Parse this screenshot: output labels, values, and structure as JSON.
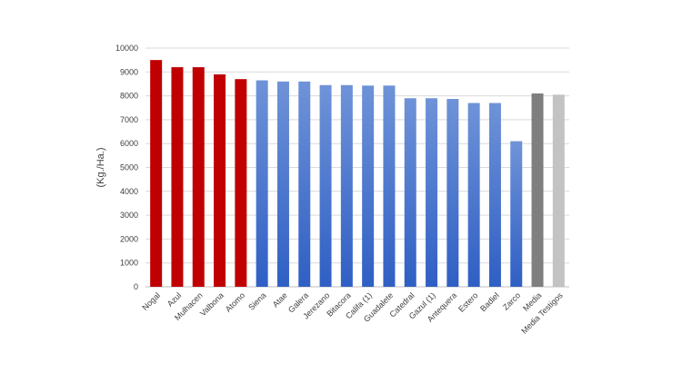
{
  "chart_data": {
    "type": "bar",
    "ylabel": "(Kg./Ha.)",
    "ylim": [
      0,
      10000
    ],
    "yticks": [
      0,
      1000,
      2000,
      3000,
      4000,
      5000,
      6000,
      7000,
      8000,
      9000,
      10000
    ],
    "grid": true,
    "categories": [
      "Nogal",
      "Azul",
      "Mulhacen",
      "Valbona",
      "Atomo",
      "Siena",
      "Atae",
      "Galera",
      "Jerezano",
      "Bitacora",
      "Califa (1)",
      "Guadalete",
      "Catedral",
      "Gazul (1)",
      "Antequera",
      "Estero",
      "Badiel",
      "Zarco",
      "Media",
      "Media Testigos"
    ],
    "values": [
      9500,
      9200,
      9200,
      8900,
      8700,
      8650,
      8600,
      8600,
      8450,
      8450,
      8430,
      8430,
      7900,
      7900,
      7870,
      7700,
      7700,
      6100,
      8100,
      8050
    ],
    "bar_groups": [
      "red",
      "red",
      "red",
      "red",
      "red",
      "blue",
      "blue",
      "blue",
      "blue",
      "blue",
      "blue",
      "blue",
      "blue",
      "blue",
      "blue",
      "blue",
      "blue",
      "blue",
      "dark-gray",
      "light-gray"
    ],
    "colors": {
      "red": "#c00000",
      "blue_top": "#6f93d8",
      "blue_bottom": "#2f5fc4",
      "dark-gray": "#7f7f7f",
      "light-gray": "#c3c3c3",
      "grid": "#d9d9d9",
      "axis": "#bfbfbf"
    }
  }
}
